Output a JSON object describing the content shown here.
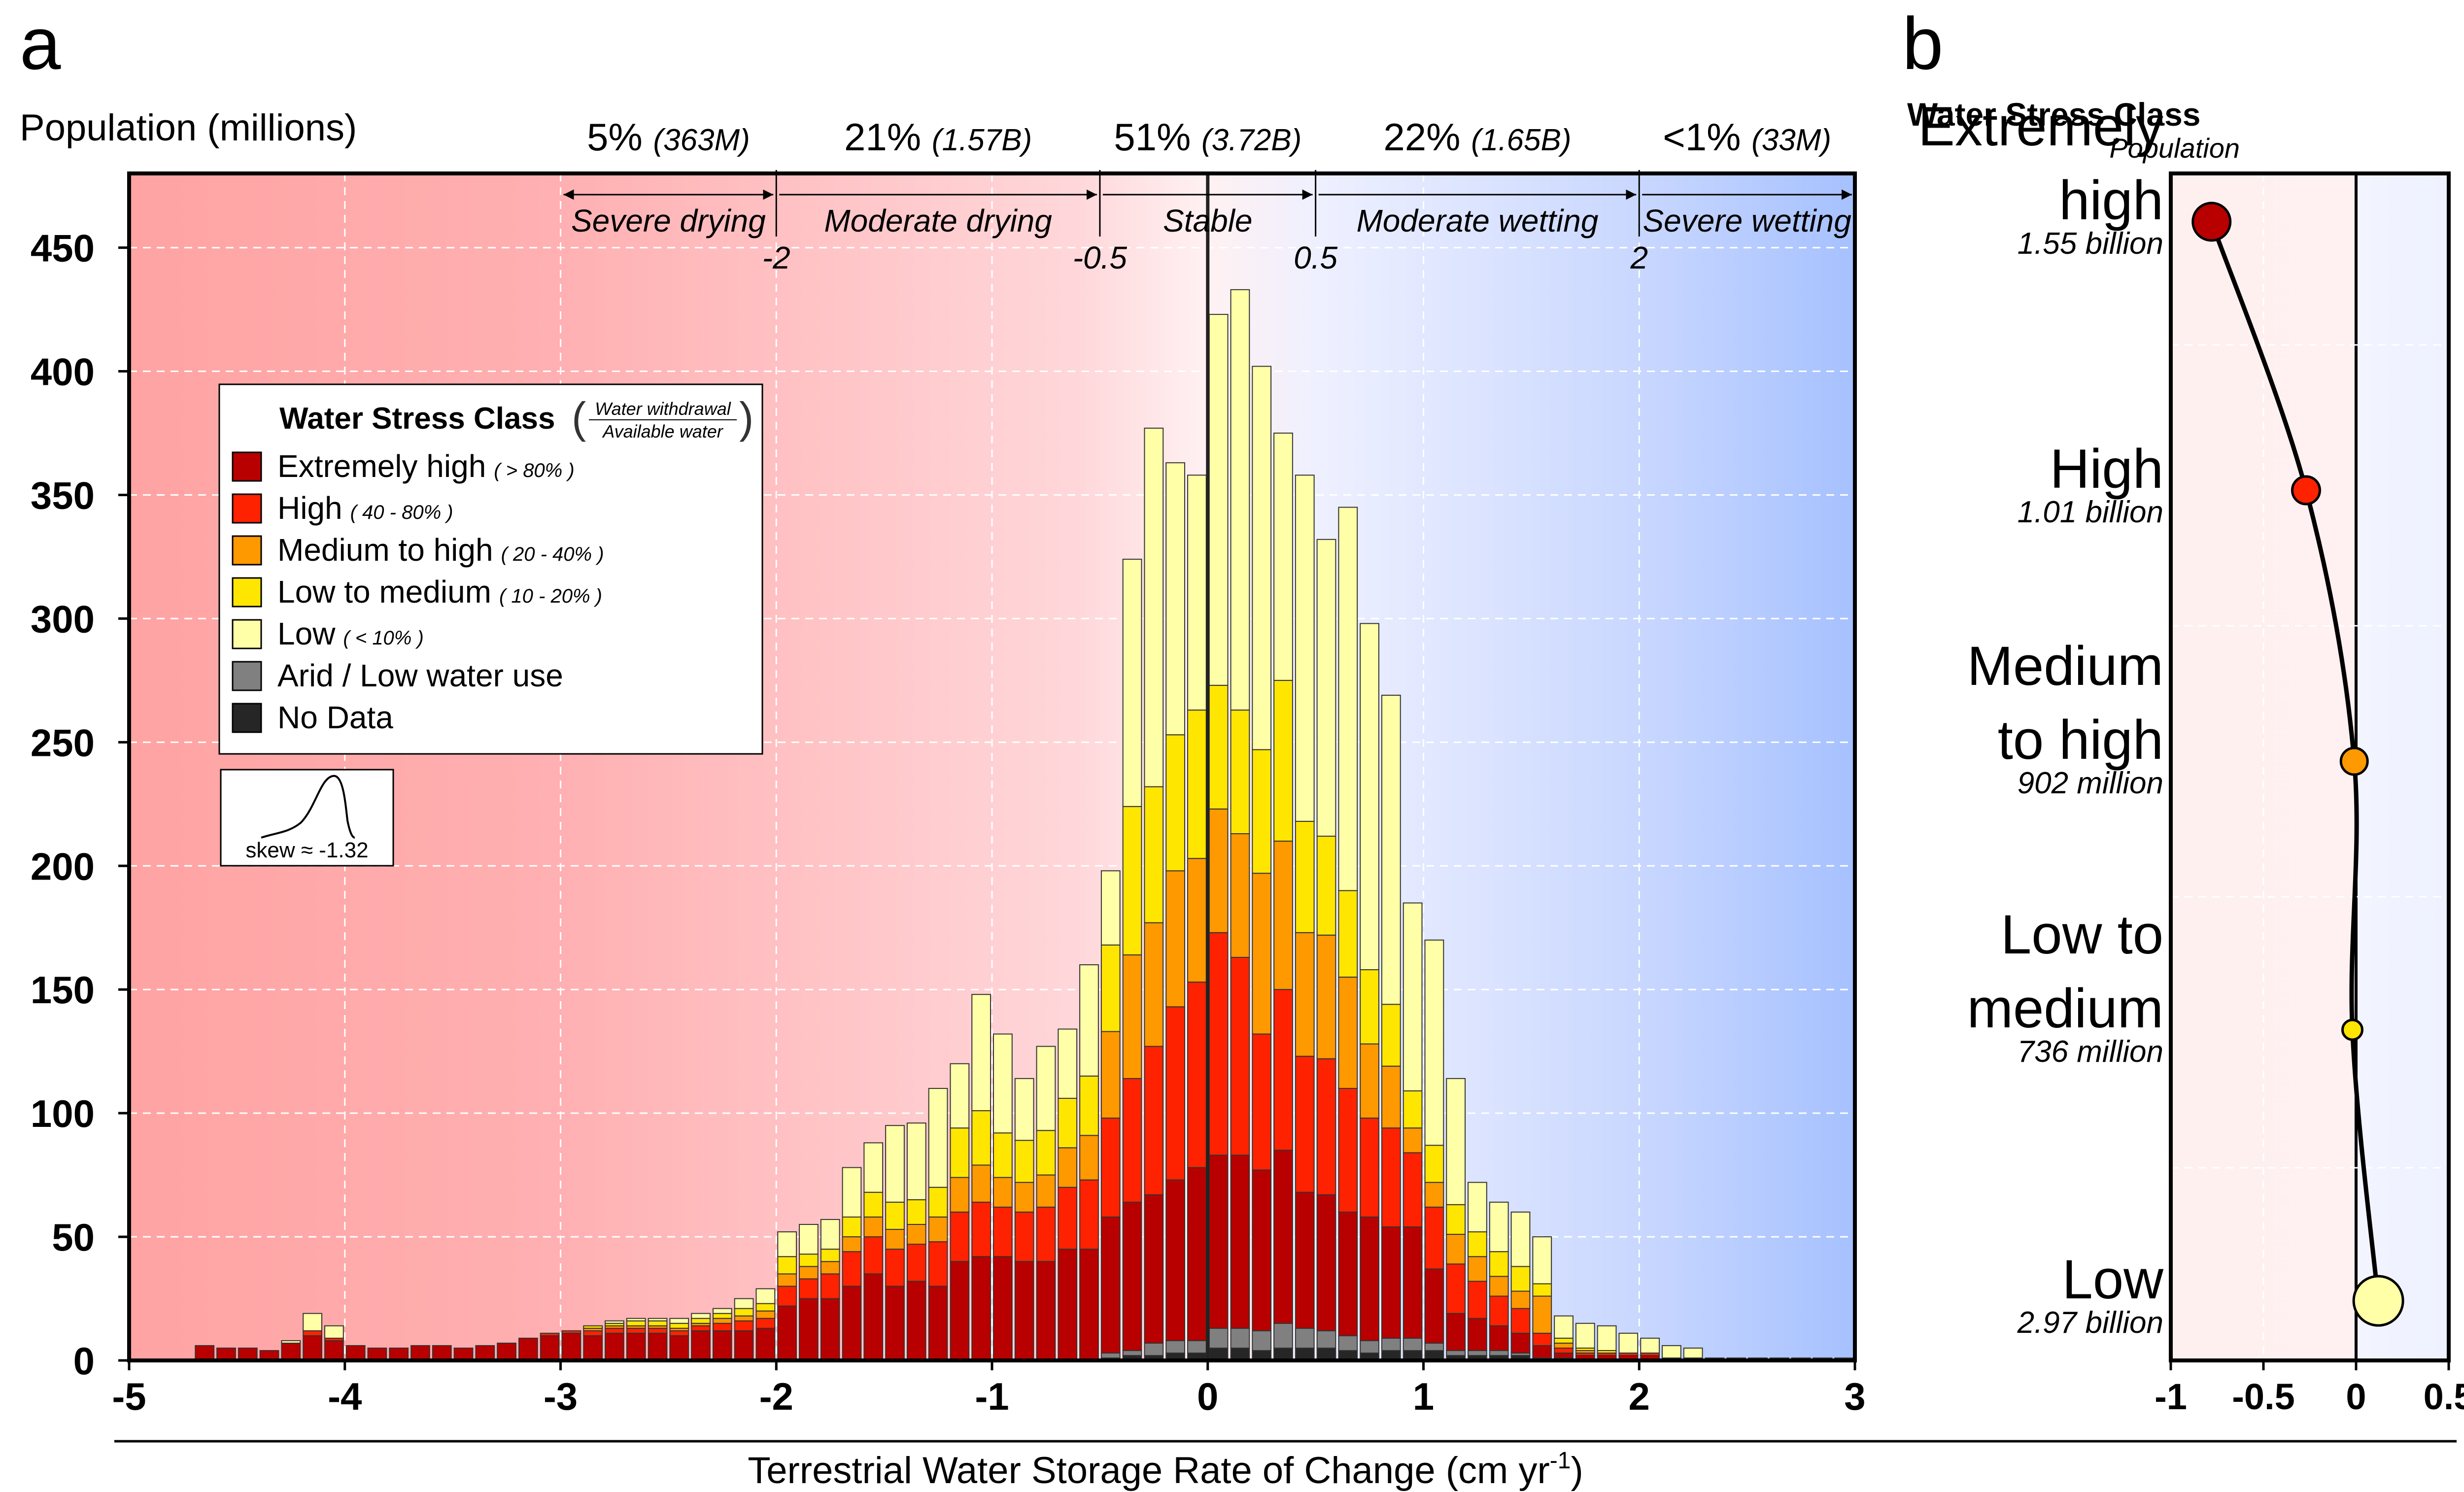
{
  "chart_data": [
    {
      "type": "bar",
      "panel": "a",
      "ylabel": "Population (millions)",
      "xlabel": "Terrestrial Water Storage Rate of Change (cm yr",
      "xlabel_sup": "-1",
      "xlabel_close": ")",
      "xlim": [
        -5,
        3
      ],
      "ylim": [
        0,
        480
      ],
      "xticks": [
        -5,
        -4,
        -3,
        -2,
        -1,
        0,
        1,
        2,
        3
      ],
      "yticks": [
        0,
        50,
        100,
        150,
        200,
        250,
        300,
        350,
        400,
        450
      ],
      "grid": true,
      "bin_width": 0.1,
      "category_labels": [
        {
          "label": "Severe drying",
          "share": "5%",
          "pop": "(363M)"
        },
        {
          "label": "Moderate drying",
          "share": "21%",
          "pop": "(1.57B)"
        },
        {
          "label": "Stable",
          "share": "51%",
          "pop": "(3.72B)"
        },
        {
          "label": "Moderate wetting",
          "share": "22%",
          "pop": "(1.65B)"
        },
        {
          "label": "Severe wetting",
          "share": "<1%",
          "pop": "(33M)"
        }
      ],
      "threshold_labels": [
        "-2",
        "-0.5",
        "0.5",
        "2"
      ],
      "thresholds": [
        -2,
        -0.5,
        0.5,
        2
      ],
      "legend": {
        "title": "Water Stress Class",
        "ratio_top": "Water withdrawal",
        "ratio_bottom": "Available water",
        "items": [
          {
            "name": "Extremely high",
            "range": "> 80%",
            "color": "#b80000"
          },
          {
            "name": "High",
            "range": "40 - 80%",
            "color": "#ff2200"
          },
          {
            "name": "Medium to high",
            "range": "20 - 40%",
            "color": "#ff9900"
          },
          {
            "name": "Low to medium",
            "range": "10 - 20%",
            "color": "#ffe600"
          },
          {
            "name": "Low",
            "range": "< 10%",
            "color": "#ffffa8"
          },
          {
            "name": "Arid / Low water use",
            "range": "",
            "color": "#808080"
          },
          {
            "name": "No Data",
            "range": "",
            "color": "#262626"
          }
        ]
      },
      "skew_label": "skew ≈ -1.32",
      "bins": [
        [
          -4.7,
          6,
          0,
          0,
          0,
          0,
          0,
          0
        ],
        [
          -4.6,
          5,
          0,
          0,
          0,
          0,
          0,
          0
        ],
        [
          -4.5,
          5,
          0,
          0,
          0,
          0,
          0,
          0
        ],
        [
          -4.4,
          4,
          0,
          0,
          0,
          0,
          0,
          0
        ],
        [
          -4.3,
          7,
          0,
          0,
          0,
          1,
          0,
          0
        ],
        [
          -4.2,
          10,
          2,
          0,
          0,
          7,
          0,
          0
        ],
        [
          -4.1,
          8,
          1,
          0,
          0,
          5,
          0,
          0
        ],
        [
          -4.0,
          6,
          0,
          0,
          0,
          0,
          0,
          0
        ],
        [
          -3.9,
          5,
          0,
          0,
          0,
          0,
          0,
          0
        ],
        [
          -3.8,
          5,
          0,
          0,
          0,
          0,
          0,
          0
        ],
        [
          -3.7,
          6,
          0,
          0,
          0,
          0,
          0,
          0
        ],
        [
          -3.6,
          6,
          0,
          0,
          0,
          0,
          0,
          0
        ],
        [
          -3.5,
          5,
          0,
          0,
          0,
          0,
          0,
          0
        ],
        [
          -3.4,
          6,
          0,
          0,
          0,
          0,
          0,
          0
        ],
        [
          -3.3,
          7,
          0,
          0,
          0,
          0,
          0,
          0
        ],
        [
          -3.2,
          9,
          0,
          0,
          0,
          0,
          0,
          0
        ],
        [
          -3.1,
          10,
          1,
          0,
          0,
          0,
          0,
          0
        ],
        [
          -3.0,
          11,
          1,
          0,
          0,
          0,
          0,
          0
        ],
        [
          -2.9,
          10,
          2,
          1,
          1,
          0,
          0,
          0
        ],
        [
          -2.8,
          11,
          2,
          1,
          1,
          1,
          0,
          0
        ],
        [
          -2.7,
          11,
          2,
          1,
          2,
          1,
          0,
          0
        ],
        [
          -2.6,
          11,
          2,
          1,
          2,
          1,
          0,
          0
        ],
        [
          -2.5,
          10,
          2,
          1,
          2,
          2,
          0,
          0
        ],
        [
          -2.4,
          12,
          2,
          1,
          2,
          2,
          0,
          0
        ],
        [
          -2.3,
          12,
          3,
          2,
          2,
          2,
          0,
          0
        ],
        [
          -2.2,
          12,
          4,
          2,
          3,
          4,
          0,
          0
        ],
        [
          -2.1,
          13,
          4,
          3,
          3,
          6,
          0,
          0
        ],
        [
          -2.0,
          22,
          8,
          5,
          7,
          10,
          0,
          0
        ],
        [
          -1.9,
          25,
          8,
          5,
          5,
          12,
          0,
          0
        ],
        [
          -1.8,
          25,
          10,
          5,
          5,
          12,
          0,
          0
        ],
        [
          -1.7,
          30,
          14,
          6,
          8,
          20,
          0,
          0
        ],
        [
          -1.6,
          35,
          15,
          8,
          10,
          20,
          0,
          0
        ],
        [
          -1.5,
          30,
          15,
          8,
          11,
          31,
          0,
          0
        ],
        [
          -1.4,
          32,
          15,
          8,
          10,
          31,
          0,
          0
        ],
        [
          -1.3,
          30,
          18,
          10,
          12,
          40,
          0,
          0
        ],
        [
          -1.2,
          40,
          20,
          14,
          20,
          26,
          0,
          0
        ],
        [
          -1.1,
          42,
          22,
          15,
          22,
          47,
          0,
          0
        ],
        [
          -1.0,
          42,
          20,
          12,
          18,
          40,
          0,
          0
        ],
        [
          -0.9,
          40,
          20,
          12,
          17,
          25,
          0,
          0
        ],
        [
          -0.8,
          40,
          22,
          13,
          18,
          34,
          0,
          0
        ],
        [
          -0.7,
          45,
          25,
          16,
          20,
          28,
          0,
          0
        ],
        [
          -0.6,
          45,
          28,
          18,
          24,
          45,
          0,
          0
        ],
        [
          -0.5,
          55,
          40,
          35,
          35,
          30,
          2,
          1
        ],
        [
          -0.4,
          60,
          50,
          50,
          60,
          100,
          2,
          2
        ],
        [
          -0.3,
          60,
          60,
          50,
          55,
          145,
          5,
          2
        ],
        [
          -0.2,
          65,
          70,
          55,
          55,
          110,
          5,
          3
        ],
        [
          -0.1,
          70,
          75,
          50,
          60,
          95,
          5,
          3
        ],
        [
          0.0,
          70,
          90,
          50,
          50,
          150,
          8,
          5
        ],
        [
          0.1,
          70,
          80,
          50,
          50,
          170,
          8,
          5
        ],
        [
          0.2,
          65,
          55,
          65,
          50,
          155,
          8,
          4
        ],
        [
          0.3,
          70,
          65,
          60,
          65,
          100,
          10,
          5
        ],
        [
          0.4,
          55,
          55,
          50,
          45,
          140,
          8,
          5
        ],
        [
          0.5,
          55,
          55,
          50,
          40,
          120,
          7,
          5
        ],
        [
          0.6,
          50,
          50,
          45,
          35,
          155,
          6,
          4
        ],
        [
          0.7,
          50,
          40,
          30,
          30,
          140,
          5,
          3
        ],
        [
          0.8,
          45,
          40,
          25,
          25,
          125,
          5,
          4
        ],
        [
          0.9,
          45,
          30,
          10,
          15,
          76,
          5,
          4
        ],
        [
          1.0,
          30,
          25,
          10,
          15,
          83,
          3,
          4
        ],
        [
          1.1,
          15,
          20,
          12,
          12,
          51,
          2,
          2
        ],
        [
          1.2,
          13,
          15,
          10,
          10,
          20,
          2,
          2
        ],
        [
          1.3,
          10,
          12,
          8,
          10,
          20,
          2,
          2
        ],
        [
          1.4,
          8,
          10,
          7,
          10,
          22,
          1,
          2
        ],
        [
          1.5,
          5,
          5,
          15,
          5,
          19,
          1,
          0
        ],
        [
          1.6,
          2,
          2,
          2,
          2,
          9,
          1,
          0
        ],
        [
          1.7,
          2,
          1,
          1,
          1,
          10,
          0,
          0
        ],
        [
          1.8,
          2,
          1,
          0,
          1,
          10,
          0,
          0
        ],
        [
          1.9,
          2,
          1,
          0,
          0,
          8,
          0,
          0
        ],
        [
          2.0,
          2,
          1,
          0,
          0,
          6,
          0,
          0
        ],
        [
          2.1,
          1,
          0,
          0,
          0,
          5,
          0,
          0
        ],
        [
          2.2,
          1,
          0,
          0,
          0,
          4,
          0,
          0
        ],
        [
          2.3,
          0,
          0,
          0,
          0,
          1,
          0,
          0
        ],
        [
          2.4,
          0,
          0,
          0,
          0,
          1,
          0,
          0
        ],
        [
          2.5,
          0,
          0,
          0,
          0,
          1,
          0,
          0
        ],
        [
          2.6,
          0,
          0,
          0,
          0,
          1,
          0,
          0
        ],
        [
          2.7,
          0,
          0,
          0,
          0,
          1,
          0,
          0
        ],
        [
          2.8,
          0,
          0,
          0,
          0,
          1,
          0,
          0
        ],
        [
          2.9,
          0,
          0,
          0,
          0,
          1,
          0,
          0
        ]
      ],
      "bins_columns": [
        "x_left",
        "Extremely high",
        "High",
        "Medium to high",
        "Low to medium",
        "Low",
        "Arid / Low water use",
        "No Data"
      ]
    },
    {
      "type": "scatter",
      "panel": "b",
      "title": "Water Stress Class",
      "subtitle": "Population",
      "xlim": [
        -1,
        0.5
      ],
      "xticks": [
        -1,
        -0.5,
        0,
        0.5
      ],
      "xtick_labels": [
        "-1",
        "-0.5",
        "0",
        "0.5"
      ],
      "points": [
        {
          "label": [
            "Extremely",
            "high"
          ],
          "population": "1.55 billion",
          "x": -0.78,
          "color": "#b80000"
        },
        {
          "label": [
            "High"
          ],
          "population": "1.01 billion",
          "x": -0.27,
          "color": "#ff2200"
        },
        {
          "label": [
            "Medium",
            "to high"
          ],
          "population": "902 million",
          "x": -0.01,
          "color": "#ff9900"
        },
        {
          "label": [
            "Low to",
            "medium"
          ],
          "population": "736 million",
          "x": -0.02,
          "color": "#ffe600"
        },
        {
          "label": [
            "Low"
          ],
          "population": "2.97 billion",
          "x": 0.12,
          "color": "#ffffa8"
        }
      ]
    }
  ],
  "panel_labels": {
    "a": "a",
    "b": "b"
  }
}
